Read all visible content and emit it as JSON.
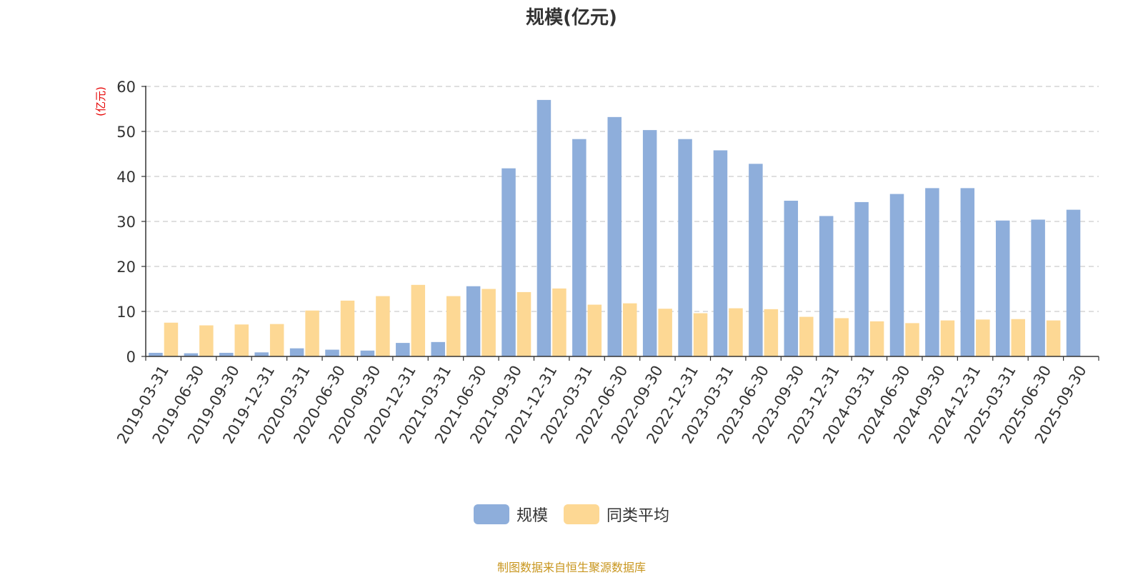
{
  "chart_data": {
    "type": "bar",
    "title": "规模(亿元)",
    "ylabel": "(亿元)",
    "xlabel": "",
    "ylim": [
      0,
      60
    ],
    "yticks": [
      0,
      10,
      20,
      30,
      40,
      50,
      60
    ],
    "grid": true,
    "legend_position": "bottom",
    "categories": [
      "2019-03-31",
      "2019-06-30",
      "2019-09-30",
      "2019-12-31",
      "2020-03-31",
      "2020-06-30",
      "2020-09-30",
      "2020-12-31",
      "2021-03-31",
      "2021-06-30",
      "2021-09-30",
      "2021-12-31",
      "2022-03-31",
      "2022-06-30",
      "2022-09-30",
      "2022-12-31",
      "2023-03-31",
      "2023-06-30",
      "2023-09-30",
      "2023-12-31",
      "2024-03-31",
      "2024-06-30",
      "2024-09-30",
      "2024-12-31",
      "2025-03-31",
      "2025-06-30",
      "2025-09-30"
    ],
    "series": [
      {
        "name": "规模",
        "color": "#8eaedb",
        "values": [
          0.8,
          0.7,
          0.8,
          0.9,
          1.8,
          1.5,
          1.3,
          3.0,
          3.2,
          15.6,
          41.8,
          57.0,
          48.3,
          53.2,
          50.3,
          48.3,
          45.8,
          42.8,
          34.6,
          31.2,
          34.3,
          36.1,
          37.4,
          37.4,
          30.2,
          30.4,
          32.6
        ]
      },
      {
        "name": "同类平均",
        "color": "#fdd894",
        "values": [
          7.5,
          6.9,
          7.1,
          7.2,
          10.2,
          12.4,
          13.4,
          15.9,
          13.4,
          15.0,
          14.3,
          15.1,
          11.5,
          11.8,
          10.6,
          9.6,
          10.7,
          10.5,
          8.8,
          8.5,
          7.8,
          7.4,
          8.0,
          8.2,
          8.3,
          8.0,
          null
        ]
      }
    ]
  },
  "footer": {
    "source_text": "制图数据来自恒生聚源数据库",
    "source_color": "#c8961e"
  }
}
